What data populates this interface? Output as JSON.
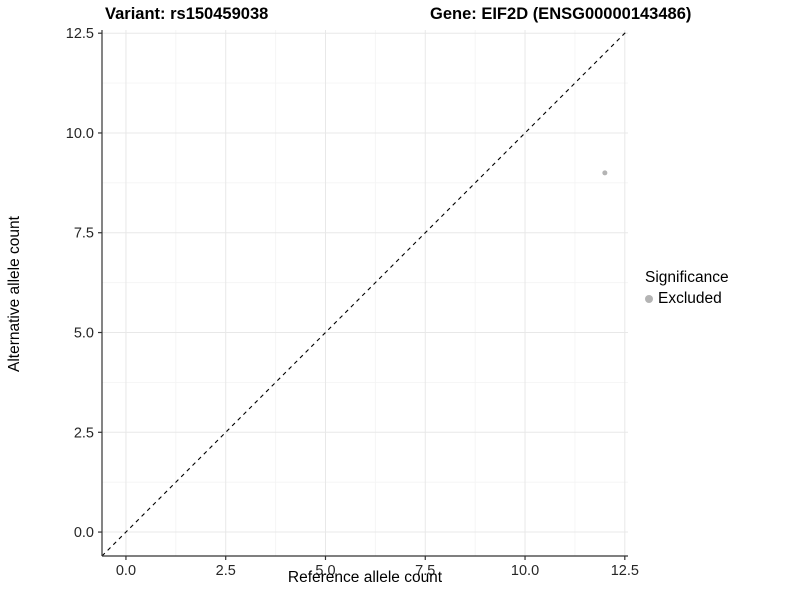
{
  "chart_data": {
    "type": "scatter",
    "title_left": "Variant: rs150459038",
    "title_right": "Gene: EIF2D (ENSG00000143486)",
    "xlabel": "Reference allele count",
    "ylabel": "Alternative allele count",
    "xlim": [
      -0.6,
      12.58
    ],
    "ylim": [
      -0.6,
      12.58
    ],
    "x_ticks": [
      0,
      2.5,
      5,
      7.5,
      10,
      12.5
    ],
    "y_ticks": [
      0,
      2.5,
      5,
      7.5,
      10,
      12.5
    ],
    "x_tick_labels": [
      "0.0",
      "2.5",
      "5.0",
      "7.5",
      "10.0",
      "12.5"
    ],
    "y_tick_labels": [
      "0.0",
      "2.5",
      "5.0",
      "7.5",
      "10.0",
      "12.5"
    ],
    "minor_ticks": [
      1.25,
      3.75,
      6.25,
      8.75,
      11.25
    ],
    "grid": true,
    "legend_position": "right",
    "identity_line": {
      "style": "dashed",
      "color": "#000000",
      "equation": "y = x"
    },
    "series": [
      {
        "name": "Excluded",
        "color": "#b4b4b4",
        "point_radius": 2.5,
        "points": [
          {
            "x": 12,
            "y": 9
          }
        ]
      }
    ],
    "style": {
      "background": "#ffffff",
      "grid_major": "#e8e8e8",
      "grid_minor": "#f4f4f4",
      "axis_line": "#333333",
      "tick_mark": "#333333",
      "tick_label": "#262626",
      "tick_label_size": "14.5px"
    }
  },
  "legend": {
    "title": "Significance",
    "items": [
      {
        "label": "Excluded",
        "color": "#b4b4b4"
      }
    ]
  }
}
